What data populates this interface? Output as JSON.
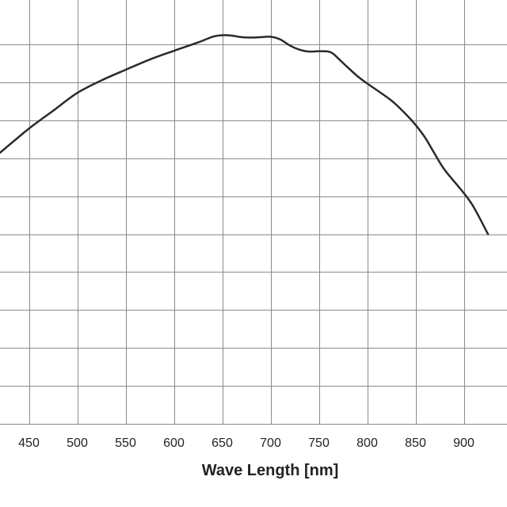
{
  "chart_data": {
    "type": "line",
    "title": "",
    "xlabel": "Wave Length [nm]",
    "ylabel": "",
    "xlim": [
      400,
      925
    ],
    "ylim": [
      0,
      100
    ],
    "grid": true,
    "x_ticks": [
      450,
      500,
      550,
      600,
      650,
      700,
      750,
      800,
      850,
      900
    ],
    "x_tick_labels": [
      "450",
      "500",
      "550",
      "600",
      "650",
      "700",
      "750",
      "800",
      "850",
      "900"
    ],
    "y_gridlines": [
      0,
      10,
      20,
      30,
      40,
      50,
      60,
      70,
      80,
      90,
      100
    ],
    "line_color": "#2a2a2a",
    "grid_color": "#8a8a8a",
    "series": [
      {
        "x": [
          400,
          425,
          450,
          475,
          500,
          525,
          550,
          575,
          600,
          625,
          640,
          650,
          660,
          670,
          680,
          690,
          700,
          710,
          720,
          730,
          740,
          750,
          760,
          765,
          770,
          780,
          790,
          800,
          825,
          840,
          850,
          860,
          870,
          880,
          900,
          910,
          925
        ],
        "y": [
          67.2,
          72.5,
          77.8,
          82.5,
          87.2,
          90.5,
          93.3,
          96.0,
          98.3,
          100.5,
          102.0,
          102.4,
          102.3,
          101.9,
          101.8,
          101.9,
          102.0,
          101.3,
          99.7,
          98.6,
          98.1,
          98.2,
          98.1,
          97.5,
          96.3,
          93.9,
          91.6,
          89.7,
          85.2,
          81.6,
          78.8,
          75.4,
          71.1,
          67.0,
          60.8,
          57.2,
          50.0
        ]
      }
    ]
  }
}
